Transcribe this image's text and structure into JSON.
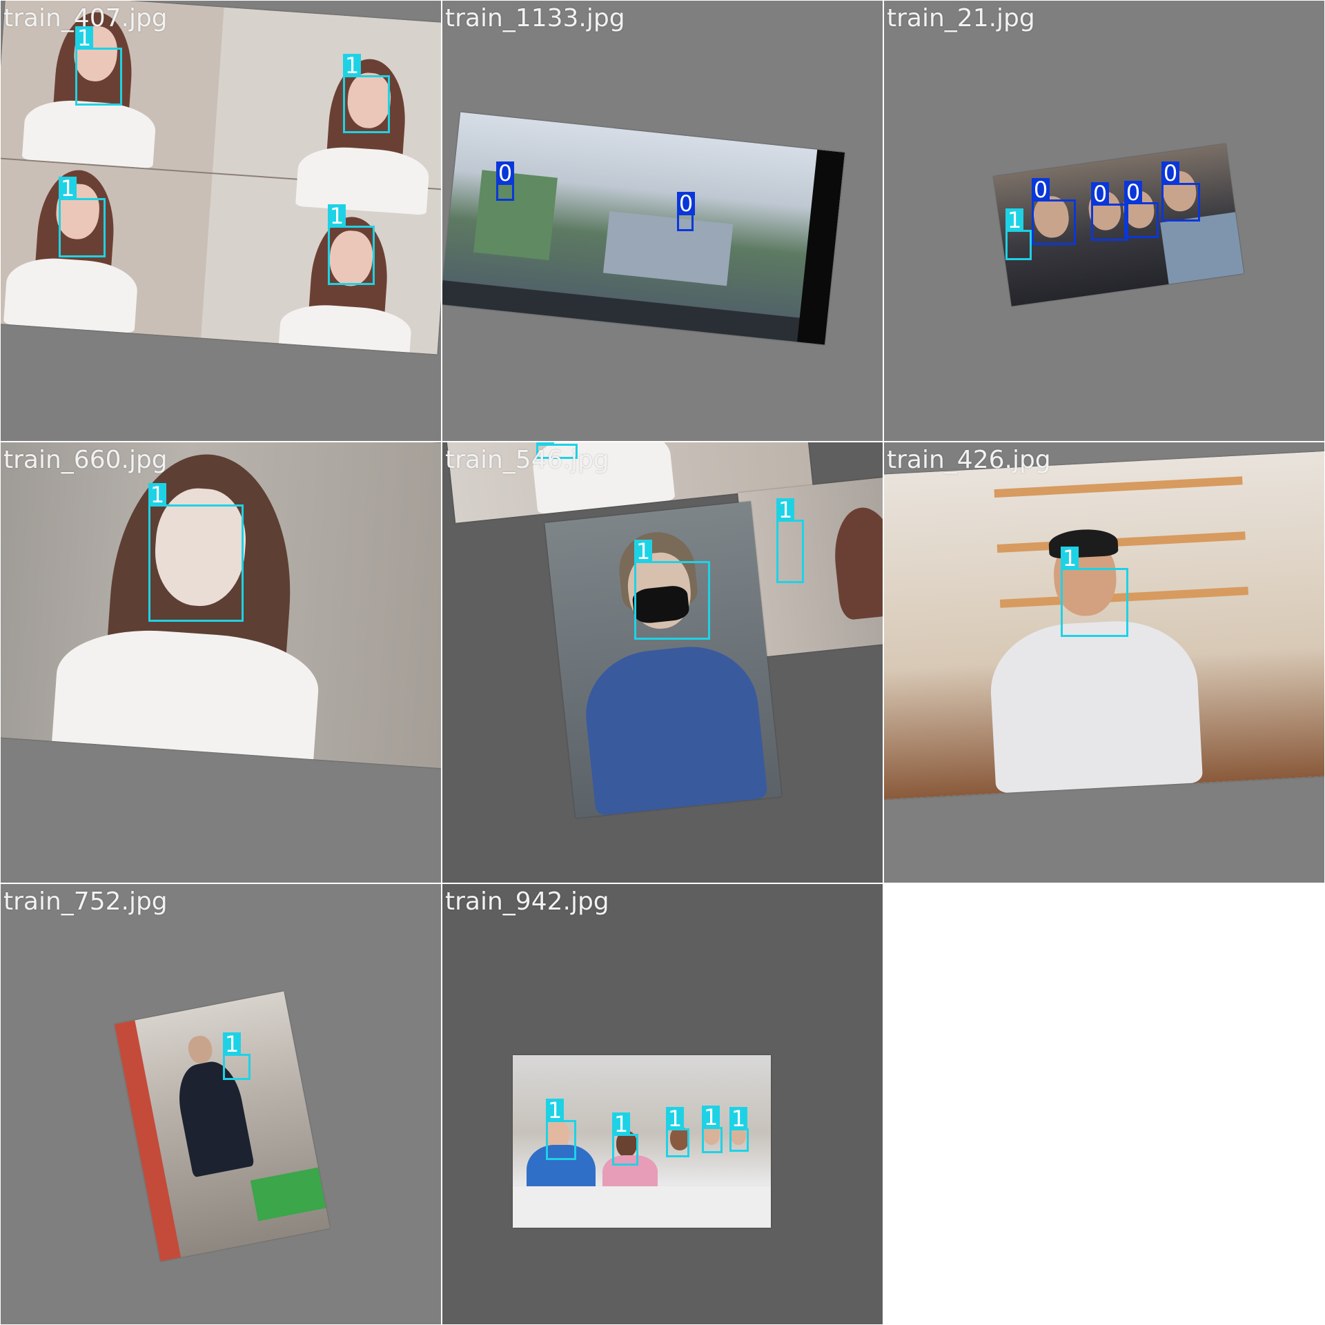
{
  "colors": {
    "class0": "#0a37d9",
    "class1": "#1ed2e6",
    "tile_bg": "#7f7f7f",
    "tile_bg_dark": "#5f5f5f"
  },
  "tiles": [
    {
      "label": "train_407.jpg",
      "boxes": [
        "1",
        "1",
        "1",
        "1"
      ]
    },
    {
      "label": "train_1133.jpg",
      "boxes": [
        "0",
        "0"
      ]
    },
    {
      "label": "train_21.jpg",
      "boxes": [
        "1",
        "0",
        "0",
        "0",
        "0"
      ]
    },
    {
      "label": "train_660.jpg",
      "boxes": [
        "1"
      ]
    },
    {
      "label": "train_546.jpg",
      "boxes": [
        "1",
        "1",
        "1"
      ]
    },
    {
      "label": "train_426.jpg",
      "boxes": [
        "1"
      ]
    },
    {
      "label": "train_752.jpg",
      "boxes": [
        "1"
      ]
    },
    {
      "label": "train_942.jpg",
      "boxes": [
        "1",
        "1",
        "1",
        "1",
        "1"
      ]
    }
  ]
}
